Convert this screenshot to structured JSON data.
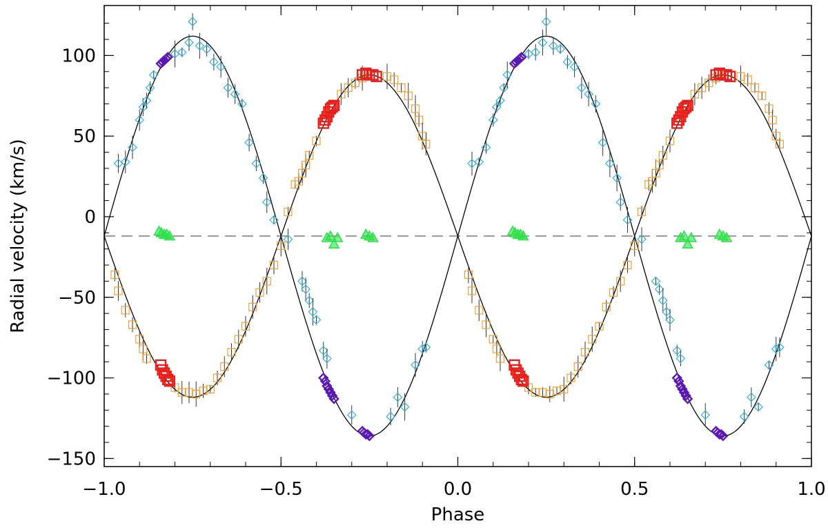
{
  "chart_data": {
    "type": "scatter",
    "title": "",
    "xlabel": "Phase",
    "ylabel": "Radial velocity (km/s)",
    "xlim": [
      -1.0,
      1.0
    ],
    "ylim": [
      -155,
      131
    ],
    "x_ticks": [
      {
        "value": -1.0,
        "label": "−1.0"
      },
      {
        "value": -0.5,
        "label": "−0.5"
      },
      {
        "value": 0.0,
        "label": "0.0"
      },
      {
        "value": 0.5,
        "label": "0.5"
      },
      {
        "value": 1.0,
        "label": "1.0"
      }
    ],
    "y_ticks": [
      {
        "value": -150,
        "label": "−150"
      },
      {
        "value": -100,
        "label": "−100"
      },
      {
        "value": -50,
        "label": "−50"
      },
      {
        "value": 0,
        "label": "0"
      },
      {
        "value": 50,
        "label": "50"
      },
      {
        "value": 100,
        "label": "100"
      }
    ],
    "systemic_velocity": -12,
    "colors": {
      "cyan": "#29b4e0",
      "orange": "#f0a030",
      "red": "#e8201c",
      "purple": "#5a18b4",
      "green": "#2ee04a",
      "curve": "#000000",
      "dashed": "#7a7a7a"
    },
    "model_curves": [
      {
        "kind": "sine",
        "gamma": -12,
        "amplitude": 124,
        "phase_of_max": 0.25
      },
      {
        "kind": "sine",
        "gamma": -12,
        "amplitude": -100,
        "phase_of_max": 0.25
      }
    ],
    "series": [
      {
        "marker": "diamond",
        "color": "cyan",
        "points": [
          [
            -0.96,
            33
          ],
          [
            -0.94,
            34
          ],
          [
            -0.92,
            43
          ],
          [
            -0.9,
            60
          ],
          [
            -0.89,
            68
          ],
          [
            -0.88,
            72
          ],
          [
            -0.87,
            80
          ],
          [
            -0.86,
            88
          ],
          [
            -0.8,
            101
          ],
          [
            -0.78,
            102
          ],
          [
            -0.76,
            108
          ],
          [
            -0.75,
            121
          ],
          [
            -0.73,
            106
          ],
          [
            -0.71,
            104
          ],
          [
            -0.69,
            96
          ],
          [
            -0.67,
            93
          ],
          [
            -0.65,
            80
          ],
          [
            -0.63,
            76
          ],
          [
            -0.61,
            70
          ],
          [
            -0.59,
            46
          ],
          [
            -0.57,
            33
          ],
          [
            -0.55,
            24
          ],
          [
            -0.54,
            9
          ],
          [
            -0.52,
            -2
          ],
          [
            -0.48,
            -14
          ],
          [
            -0.44,
            -40
          ],
          [
            -0.43,
            -45
          ],
          [
            -0.42,
            -52
          ],
          [
            -0.41,
            -59
          ],
          [
            -0.4,
            -64
          ],
          [
            -0.38,
            -83
          ],
          [
            -0.37,
            -88
          ],
          [
            -0.3,
            -123
          ],
          [
            -0.19,
            -124
          ],
          [
            -0.17,
            -112
          ],
          [
            -0.15,
            -118
          ],
          [
            -0.12,
            -92
          ],
          [
            -0.1,
            -82
          ],
          [
            -0.09,
            -81
          ],
          [
            0.04,
            33
          ],
          [
            0.06,
            34
          ],
          [
            0.08,
            43
          ],
          [
            0.1,
            60
          ],
          [
            0.11,
            68
          ],
          [
            0.12,
            72
          ],
          [
            0.13,
            80
          ],
          [
            0.14,
            88
          ],
          [
            0.2,
            101
          ],
          [
            0.22,
            102
          ],
          [
            0.24,
            108
          ],
          [
            0.25,
            121
          ],
          [
            0.27,
            106
          ],
          [
            0.29,
            104
          ],
          [
            0.31,
            96
          ],
          [
            0.33,
            93
          ],
          [
            0.35,
            80
          ],
          [
            0.37,
            76
          ],
          [
            0.39,
            70
          ],
          [
            0.41,
            46
          ],
          [
            0.43,
            33
          ],
          [
            0.45,
            24
          ],
          [
            0.46,
            9
          ],
          [
            0.48,
            -2
          ],
          [
            0.52,
            -14
          ],
          [
            0.56,
            -40
          ],
          [
            0.57,
            -45
          ],
          [
            0.58,
            -52
          ],
          [
            0.59,
            -59
          ],
          [
            0.6,
            -64
          ],
          [
            0.62,
            -83
          ],
          [
            0.63,
            -88
          ],
          [
            0.7,
            -123
          ],
          [
            0.81,
            -124
          ],
          [
            0.83,
            -112
          ],
          [
            0.85,
            -118
          ],
          [
            0.88,
            -92
          ],
          [
            0.9,
            -82
          ],
          [
            0.91,
            -81
          ]
        ]
      },
      {
        "marker": "square",
        "color": "orange",
        "points": [
          [
            -0.97,
            -36
          ],
          [
            -0.96,
            -46
          ],
          [
            -0.94,
            -58
          ],
          [
            -0.92,
            -67
          ],
          [
            -0.9,
            -76
          ],
          [
            -0.89,
            -82
          ],
          [
            -0.88,
            -88
          ],
          [
            -0.8,
            -106
          ],
          [
            -0.78,
            -109
          ],
          [
            -0.76,
            -109
          ],
          [
            -0.74,
            -110
          ],
          [
            -0.72,
            -108
          ],
          [
            -0.7,
            -107
          ],
          [
            -0.68,
            -100
          ],
          [
            -0.66,
            -93
          ],
          [
            -0.64,
            -84
          ],
          [
            -0.62,
            -76
          ],
          [
            -0.6,
            -68
          ],
          [
            -0.58,
            -56
          ],
          [
            -0.56,
            -47
          ],
          [
            -0.54,
            -40
          ],
          [
            -0.52,
            -30
          ],
          [
            -0.5,
            -18
          ],
          [
            -0.48,
            3
          ],
          [
            -0.46,
            20
          ],
          [
            -0.45,
            22
          ],
          [
            -0.44,
            27
          ],
          [
            -0.43,
            32
          ],
          [
            -0.42,
            38
          ],
          [
            -0.4,
            47
          ],
          [
            -0.33,
            76
          ],
          [
            -0.31,
            80
          ],
          [
            -0.29,
            83
          ],
          [
            -0.27,
            86
          ],
          [
            -0.2,
            87
          ],
          [
            -0.18,
            85
          ],
          [
            -0.16,
            80
          ],
          [
            -0.14,
            75
          ],
          [
            -0.12,
            67
          ],
          [
            -0.11,
            60
          ],
          [
            -0.1,
            50
          ],
          [
            -0.09,
            45
          ],
          [
            0.03,
            -36
          ],
          [
            0.04,
            -46
          ],
          [
            0.06,
            -58
          ],
          [
            0.08,
            -67
          ],
          [
            0.1,
            -76
          ],
          [
            0.11,
            -82
          ],
          [
            0.12,
            -88
          ],
          [
            0.2,
            -106
          ],
          [
            0.22,
            -109
          ],
          [
            0.24,
            -109
          ],
          [
            0.26,
            -110
          ],
          [
            0.28,
            -108
          ],
          [
            0.3,
            -107
          ],
          [
            0.32,
            -100
          ],
          [
            0.34,
            -93
          ],
          [
            0.36,
            -84
          ],
          [
            0.38,
            -76
          ],
          [
            0.4,
            -68
          ],
          [
            0.42,
            -56
          ],
          [
            0.44,
            -47
          ],
          [
            0.46,
            -40
          ],
          [
            0.48,
            -30
          ],
          [
            0.5,
            -18
          ],
          [
            0.52,
            3
          ],
          [
            0.54,
            20
          ],
          [
            0.55,
            22
          ],
          [
            0.56,
            27
          ],
          [
            0.57,
            32
          ],
          [
            0.58,
            38
          ],
          [
            0.6,
            47
          ],
          [
            0.67,
            76
          ],
          [
            0.69,
            80
          ],
          [
            0.71,
            83
          ],
          [
            0.73,
            86
          ],
          [
            0.8,
            87
          ],
          [
            0.82,
            85
          ],
          [
            0.84,
            80
          ],
          [
            0.86,
            75
          ],
          [
            0.88,
            67
          ],
          [
            0.89,
            60
          ],
          [
            0.9,
            50
          ],
          [
            0.91,
            45
          ]
        ]
      },
      {
        "marker": "square",
        "color": "red",
        "points": [
          [
            -0.84,
            -92
          ],
          [
            -0.835,
            -95
          ],
          [
            -0.83,
            -97
          ],
          [
            -0.825,
            -99
          ],
          [
            -0.82,
            -101
          ],
          [
            -0.815,
            -102
          ],
          [
            -0.38,
            58
          ],
          [
            -0.375,
            60
          ],
          [
            -0.37,
            62
          ],
          [
            -0.365,
            65
          ],
          [
            -0.36,
            67
          ],
          [
            -0.355,
            68
          ],
          [
            -0.35,
            69
          ],
          [
            -0.27,
            88
          ],
          [
            -0.26,
            89
          ],
          [
            -0.25,
            88
          ],
          [
            -0.24,
            88
          ],
          [
            -0.23,
            87
          ],
          [
            0.16,
            -92
          ],
          [
            0.165,
            -95
          ],
          [
            0.17,
            -97
          ],
          [
            0.175,
            -99
          ],
          [
            0.18,
            -101
          ],
          [
            0.185,
            -102
          ],
          [
            0.62,
            58
          ],
          [
            0.625,
            60
          ],
          [
            0.63,
            62
          ],
          [
            0.635,
            65
          ],
          [
            0.64,
            67
          ],
          [
            0.645,
            68
          ],
          [
            0.65,
            69
          ],
          [
            0.73,
            88
          ],
          [
            0.74,
            89
          ],
          [
            0.75,
            88
          ],
          [
            0.76,
            88
          ],
          [
            0.77,
            87
          ]
        ]
      },
      {
        "marker": "diamond",
        "color": "purple",
        "points": [
          [
            -0.84,
            95
          ],
          [
            -0.835,
            96
          ],
          [
            -0.83,
            97
          ],
          [
            -0.825,
            98
          ],
          [
            -0.82,
            99
          ],
          [
            -0.38,
            -100
          ],
          [
            -0.375,
            -102
          ],
          [
            -0.37,
            -105
          ],
          [
            -0.365,
            -107
          ],
          [
            -0.36,
            -109
          ],
          [
            -0.355,
            -111
          ],
          [
            -0.35,
            -113
          ],
          [
            -0.27,
            -133
          ],
          [
            -0.265,
            -134
          ],
          [
            -0.26,
            -135
          ],
          [
            -0.255,
            -135
          ],
          [
            -0.25,
            -136
          ],
          [
            0.16,
            95
          ],
          [
            0.165,
            96
          ],
          [
            0.17,
            97
          ],
          [
            0.175,
            98
          ],
          [
            0.18,
            99
          ],
          [
            0.62,
            -100
          ],
          [
            0.625,
            -102
          ],
          [
            0.63,
            -105
          ],
          [
            0.635,
            -107
          ],
          [
            0.64,
            -109
          ],
          [
            0.645,
            -111
          ],
          [
            0.65,
            -113
          ],
          [
            0.73,
            -133
          ],
          [
            0.735,
            -134
          ],
          [
            0.74,
            -135
          ],
          [
            0.745,
            -135
          ],
          [
            0.75,
            -136
          ]
        ]
      },
      {
        "marker": "triangle",
        "color": "green",
        "points": [
          [
            -0.845,
            -9
          ],
          [
            -0.838,
            -10
          ],
          [
            -0.83,
            -11
          ],
          [
            -0.823,
            -11
          ],
          [
            -0.815,
            -12
          ],
          [
            -0.37,
            -13
          ],
          [
            -0.36,
            -12
          ],
          [
            -0.35,
            -17
          ],
          [
            -0.34,
            -13
          ],
          [
            -0.26,
            -11
          ],
          [
            -0.25,
            -12
          ],
          [
            -0.24,
            -13
          ],
          [
            0.155,
            -9
          ],
          [
            0.162,
            -10
          ],
          [
            0.17,
            -11
          ],
          [
            0.177,
            -11
          ],
          [
            0.185,
            -12
          ],
          [
            0.63,
            -13
          ],
          [
            0.64,
            -12
          ],
          [
            0.65,
            -17
          ],
          [
            0.66,
            -13
          ],
          [
            0.74,
            -11
          ],
          [
            0.75,
            -12
          ],
          [
            0.76,
            -13
          ]
        ]
      }
    ]
  }
}
